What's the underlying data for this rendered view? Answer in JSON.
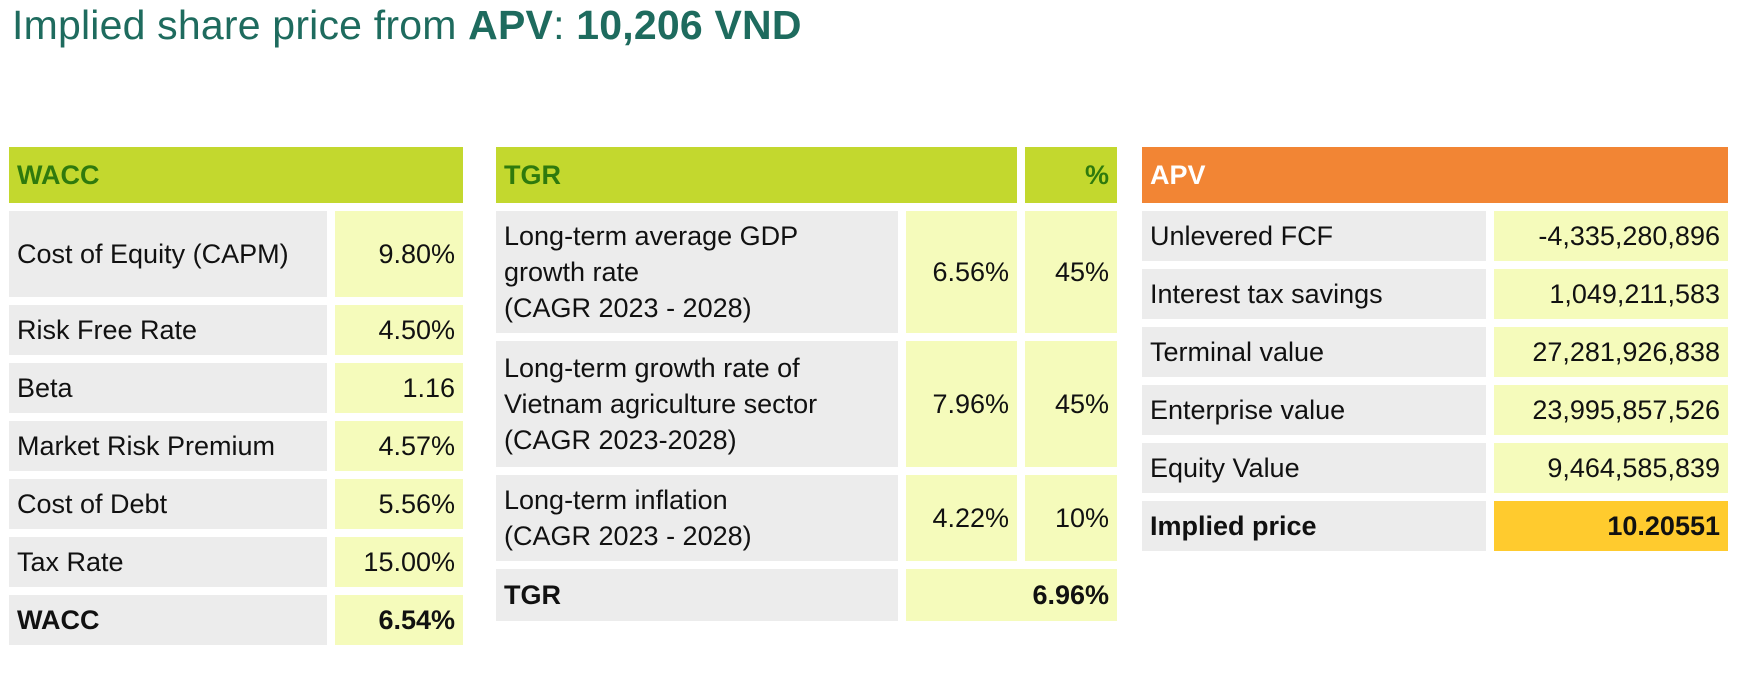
{
  "title": {
    "prefix": "Implied share price from ",
    "method": "APV",
    "separator": ": ",
    "value": "10,206 VND"
  },
  "colors": {
    "title": "#1e6b5e",
    "header_green": "#c3d82e",
    "header_green_text": "#2f7a0d",
    "header_orange": "#f28534",
    "label_cell": "#ececec",
    "value_cell": "#f5fbbb",
    "implied_price_cell": "#ffcb2e"
  },
  "wacc": {
    "header": "WACC",
    "rows": [
      {
        "label": "Cost of Equity (CAPM)",
        "value": "9.80%"
      },
      {
        "label": "Risk Free Rate",
        "value": "4.50%"
      },
      {
        "label": "Beta",
        "value": "1.16"
      },
      {
        "label": "Market Risk Premium",
        "value": "4.57%"
      },
      {
        "label": "Cost of Debt",
        "value": "5.56%"
      },
      {
        "label": "Tax Rate",
        "value": "15.00%"
      }
    ],
    "total": {
      "label": "WACC",
      "value": "6.54%"
    }
  },
  "tgr": {
    "header": "TGR",
    "header_pct": "%",
    "rows": [
      {
        "line1": "Long-term average GDP",
        "line2": "growth rate",
        "line3": "(CAGR 2023 - 2028)",
        "rate": "6.56%",
        "weight": "45%"
      },
      {
        "line1": "Long-term growth rate of",
        "line2": "Vietnam agriculture sector",
        "line3": "(CAGR 2023-2028)",
        "rate": "7.96%",
        "weight": "45%"
      },
      {
        "line1": "Long-term inflation",
        "line2": "(CAGR 2023 - 2028)",
        "rate": "4.22%",
        "weight": "10%"
      }
    ],
    "total": {
      "label": "TGR",
      "value": "6.96%"
    }
  },
  "apv": {
    "header": "APV",
    "rows": [
      {
        "label": "Unlevered FCF",
        "value": "-4,335,280,896"
      },
      {
        "label": "Interest tax savings",
        "value": "1,049,211,583"
      },
      {
        "label": "Terminal value",
        "value": "27,281,926,838"
      },
      {
        "label": "Enterprise value",
        "value": "23,995,857,526"
      },
      {
        "label": "Equity Value",
        "value": "9,464,585,839"
      }
    ],
    "total": {
      "label": "Implied price",
      "value": "10.20551"
    }
  }
}
